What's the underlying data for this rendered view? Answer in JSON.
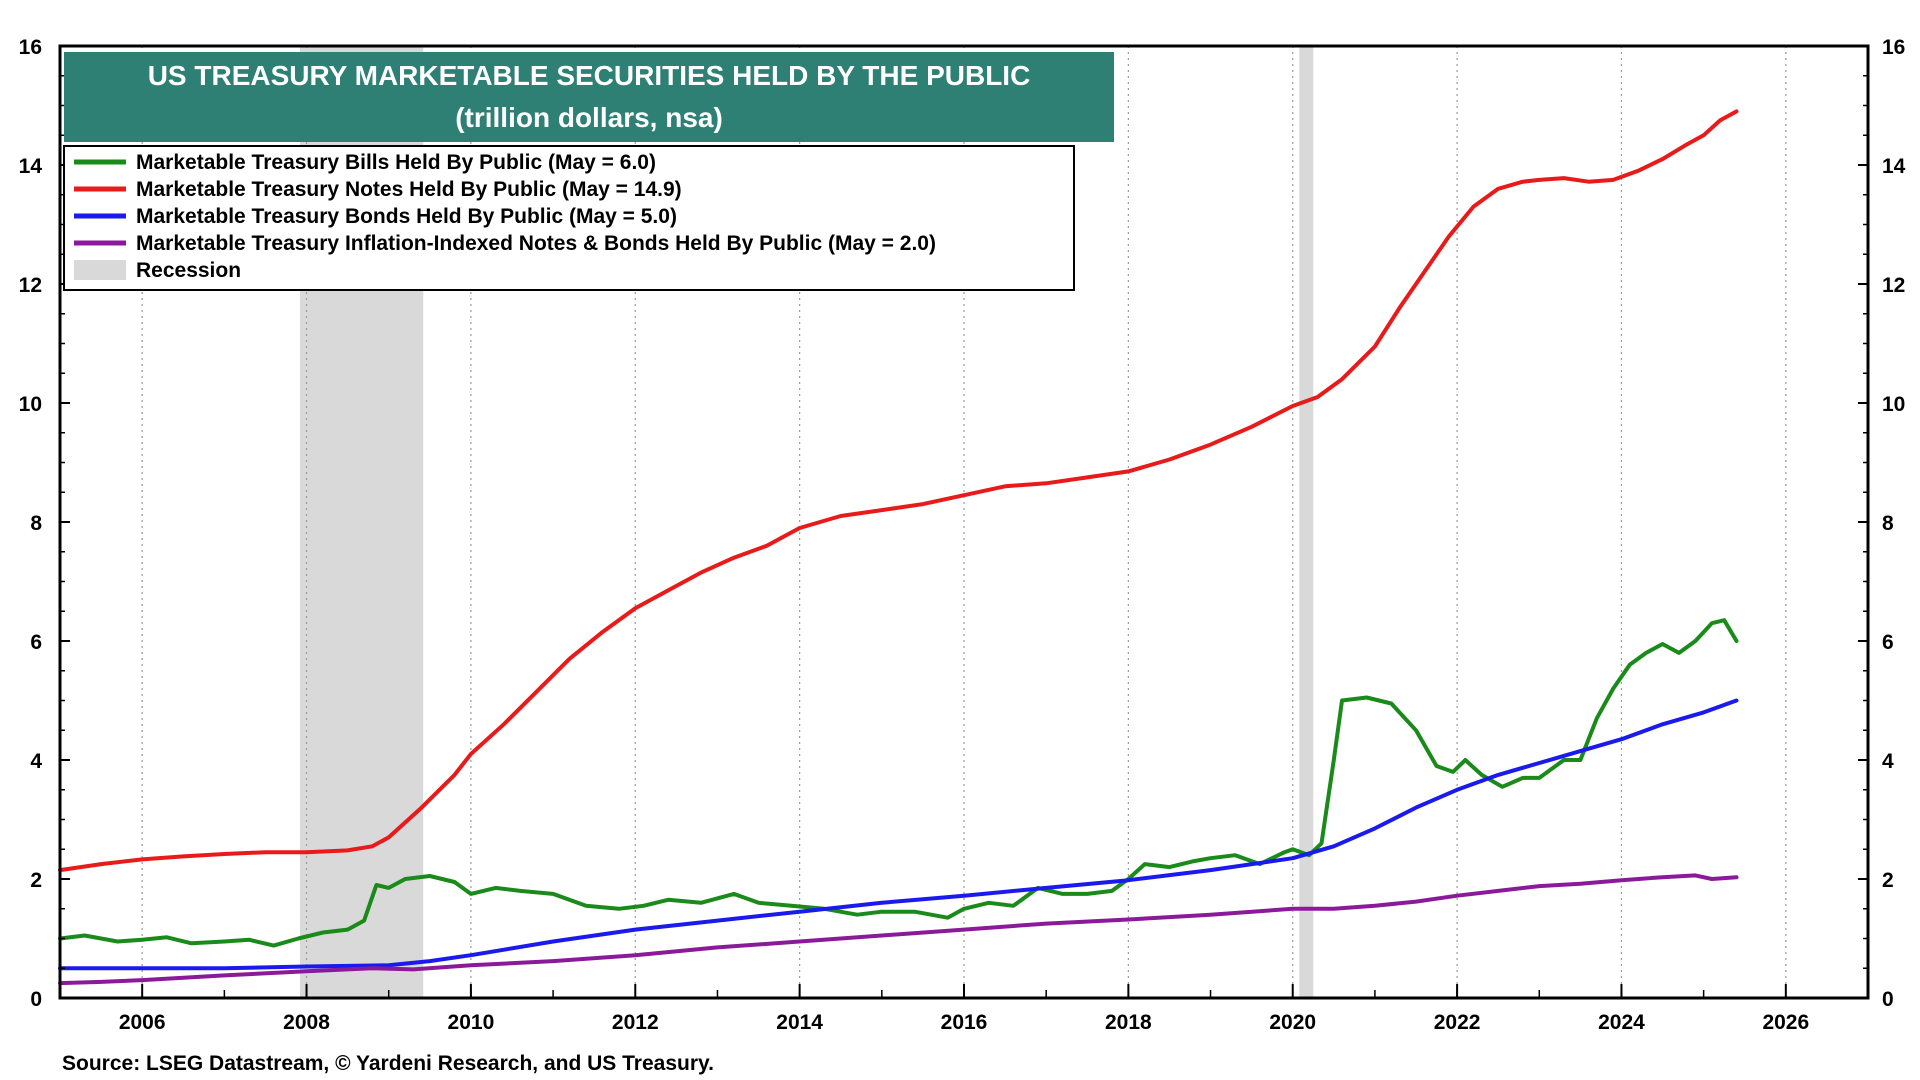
{
  "chart_data": {
    "type": "line",
    "title": "US TREASURY MARKETABLE SECURITIES HELD BY THE PUBLIC",
    "subtitle": "(trillion dollars, nsa)",
    "source": "Source: LSEG Datastream, © Yardeni Research, and US Treasury.",
    "xlim": [
      2005.0,
      2027.0
    ],
    "ylim": [
      0,
      16
    ],
    "x_ticks": [
      2006,
      2008,
      2010,
      2012,
      2014,
      2016,
      2018,
      2020,
      2022,
      2024,
      2026
    ],
    "y_ticks": [
      0,
      2,
      4,
      6,
      8,
      10,
      12,
      14,
      16
    ],
    "grid": true,
    "legend_position": "top-left",
    "recessions": [
      {
        "start": 2007.92,
        "end": 2009.42
      },
      {
        "start": 2020.08,
        "end": 2020.25
      }
    ],
    "recession_label": "Recession",
    "recession_color": "#d9d9d9",
    "title_bg_color": "#2e7f74",
    "series": [
      {
        "name": "Marketable Treasury Bills Held By Public (May = 6.0)",
        "color": "#1a8a1a",
        "points": [
          [
            2005.0,
            1.0
          ],
          [
            2005.3,
            1.05
          ],
          [
            2005.7,
            0.95
          ],
          [
            2006.0,
            0.98
          ],
          [
            2006.3,
            1.02
          ],
          [
            2006.6,
            0.92
          ],
          [
            2007.0,
            0.95
          ],
          [
            2007.3,
            0.98
          ],
          [
            2007.6,
            0.88
          ],
          [
            2007.9,
            1.0
          ],
          [
            2008.2,
            1.1
          ],
          [
            2008.5,
            1.15
          ],
          [
            2008.7,
            1.3
          ],
          [
            2008.85,
            1.9
          ],
          [
            2009.0,
            1.85
          ],
          [
            2009.2,
            2.0
          ],
          [
            2009.5,
            2.05
          ],
          [
            2009.8,
            1.95
          ],
          [
            2010.0,
            1.75
          ],
          [
            2010.3,
            1.85
          ],
          [
            2010.6,
            1.8
          ],
          [
            2011.0,
            1.75
          ],
          [
            2011.4,
            1.55
          ],
          [
            2011.8,
            1.5
          ],
          [
            2012.1,
            1.55
          ],
          [
            2012.4,
            1.65
          ],
          [
            2012.8,
            1.6
          ],
          [
            2013.2,
            1.75
          ],
          [
            2013.5,
            1.6
          ],
          [
            2013.9,
            1.55
          ],
          [
            2014.3,
            1.5
          ],
          [
            2014.7,
            1.4
          ],
          [
            2015.0,
            1.45
          ],
          [
            2015.4,
            1.45
          ],
          [
            2015.8,
            1.35
          ],
          [
            2016.0,
            1.5
          ],
          [
            2016.3,
            1.6
          ],
          [
            2016.6,
            1.55
          ],
          [
            2016.9,
            1.85
          ],
          [
            2017.2,
            1.75
          ],
          [
            2017.5,
            1.75
          ],
          [
            2017.8,
            1.8
          ],
          [
            2018.0,
            2.0
          ],
          [
            2018.2,
            2.25
          ],
          [
            2018.5,
            2.2
          ],
          [
            2018.8,
            2.3
          ],
          [
            2019.0,
            2.35
          ],
          [
            2019.3,
            2.4
          ],
          [
            2019.6,
            2.25
          ],
          [
            2019.9,
            2.45
          ],
          [
            2020.0,
            2.5
          ],
          [
            2020.2,
            2.4
          ],
          [
            2020.35,
            2.6
          ],
          [
            2020.5,
            4.0
          ],
          [
            2020.6,
            5.0
          ],
          [
            2020.9,
            5.05
          ],
          [
            2021.2,
            4.95
          ],
          [
            2021.5,
            4.5
          ],
          [
            2021.75,
            3.9
          ],
          [
            2021.95,
            3.8
          ],
          [
            2022.1,
            4.0
          ],
          [
            2022.3,
            3.75
          ],
          [
            2022.55,
            3.55
          ],
          [
            2022.8,
            3.7
          ],
          [
            2023.0,
            3.7
          ],
          [
            2023.3,
            4.0
          ],
          [
            2023.5,
            4.0
          ],
          [
            2023.7,
            4.7
          ],
          [
            2023.9,
            5.2
          ],
          [
            2024.1,
            5.6
          ],
          [
            2024.3,
            5.8
          ],
          [
            2024.5,
            5.95
          ],
          [
            2024.7,
            5.8
          ],
          [
            2024.9,
            6.0
          ],
          [
            2025.1,
            6.3
          ],
          [
            2025.25,
            6.35
          ],
          [
            2025.4,
            6.0
          ]
        ]
      },
      {
        "name": "Marketable Treasury Notes Held By Public (May = 14.9)",
        "color": "#e81a1a",
        "points": [
          [
            2005.0,
            2.15
          ],
          [
            2005.5,
            2.25
          ],
          [
            2006.0,
            2.33
          ],
          [
            2006.5,
            2.38
          ],
          [
            2007.0,
            2.42
          ],
          [
            2007.5,
            2.45
          ],
          [
            2008.0,
            2.45
          ],
          [
            2008.5,
            2.48
          ],
          [
            2008.8,
            2.55
          ],
          [
            2009.0,
            2.7
          ],
          [
            2009.4,
            3.2
          ],
          [
            2009.8,
            3.75
          ],
          [
            2010.0,
            4.1
          ],
          [
            2010.4,
            4.6
          ],
          [
            2010.8,
            5.15
          ],
          [
            2011.2,
            5.7
          ],
          [
            2011.6,
            6.15
          ],
          [
            2012.0,
            6.55
          ],
          [
            2012.4,
            6.85
          ],
          [
            2012.8,
            7.15
          ],
          [
            2013.2,
            7.4
          ],
          [
            2013.6,
            7.6
          ],
          [
            2014.0,
            7.9
          ],
          [
            2014.5,
            8.1
          ],
          [
            2015.0,
            8.2
          ],
          [
            2015.5,
            8.3
          ],
          [
            2016.0,
            8.45
          ],
          [
            2016.5,
            8.6
          ],
          [
            2017.0,
            8.65
          ],
          [
            2017.5,
            8.75
          ],
          [
            2018.0,
            8.85
          ],
          [
            2018.5,
            9.05
          ],
          [
            2019.0,
            9.3
          ],
          [
            2019.5,
            9.6
          ],
          [
            2020.0,
            9.95
          ],
          [
            2020.3,
            10.1
          ],
          [
            2020.6,
            10.4
          ],
          [
            2021.0,
            10.95
          ],
          [
            2021.3,
            11.6
          ],
          [
            2021.6,
            12.2
          ],
          [
            2021.9,
            12.8
          ],
          [
            2022.2,
            13.3
          ],
          [
            2022.5,
            13.6
          ],
          [
            2022.8,
            13.72
          ],
          [
            2023.0,
            13.75
          ],
          [
            2023.3,
            13.78
          ],
          [
            2023.6,
            13.72
          ],
          [
            2023.9,
            13.75
          ],
          [
            2024.2,
            13.9
          ],
          [
            2024.5,
            14.1
          ],
          [
            2024.8,
            14.35
          ],
          [
            2025.0,
            14.5
          ],
          [
            2025.2,
            14.75
          ],
          [
            2025.4,
            14.9
          ]
        ]
      },
      {
        "name": "Marketable Treasury Bonds Held By Public (May = 5.0)",
        "color": "#1a1aee",
        "points": [
          [
            2005.0,
            0.5
          ],
          [
            2006.0,
            0.5
          ],
          [
            2007.0,
            0.5
          ],
          [
            2008.0,
            0.53
          ],
          [
            2009.0,
            0.55
          ],
          [
            2009.5,
            0.62
          ],
          [
            2010.0,
            0.72
          ],
          [
            2011.0,
            0.95
          ],
          [
            2012.0,
            1.15
          ],
          [
            2013.0,
            1.3
          ],
          [
            2014.0,
            1.45
          ],
          [
            2015.0,
            1.6
          ],
          [
            2016.0,
            1.72
          ],
          [
            2017.0,
            1.85
          ],
          [
            2018.0,
            1.98
          ],
          [
            2019.0,
            2.15
          ],
          [
            2020.0,
            2.35
          ],
          [
            2020.5,
            2.55
          ],
          [
            2021.0,
            2.85
          ],
          [
            2021.5,
            3.2
          ],
          [
            2022.0,
            3.5
          ],
          [
            2022.5,
            3.75
          ],
          [
            2023.0,
            3.95
          ],
          [
            2023.5,
            4.15
          ],
          [
            2024.0,
            4.35
          ],
          [
            2024.5,
            4.6
          ],
          [
            2025.0,
            4.8
          ],
          [
            2025.4,
            5.0
          ]
        ]
      },
      {
        "name": "Marketable Treasury Inflation-Indexed Notes & Bonds Held By Public (May = 2.0)",
        "color": "#8a1a9a",
        "points": [
          [
            2005.0,
            0.25
          ],
          [
            2005.5,
            0.27
          ],
          [
            2006.0,
            0.3
          ],
          [
            2007.0,
            0.38
          ],
          [
            2008.0,
            0.45
          ],
          [
            2008.8,
            0.5
          ],
          [
            2009.3,
            0.48
          ],
          [
            2010.0,
            0.55
          ],
          [
            2011.0,
            0.62
          ],
          [
            2012.0,
            0.72
          ],
          [
            2013.0,
            0.85
          ],
          [
            2014.0,
            0.95
          ],
          [
            2015.0,
            1.05
          ],
          [
            2016.0,
            1.15
          ],
          [
            2017.0,
            1.25
          ],
          [
            2018.0,
            1.32
          ],
          [
            2019.0,
            1.4
          ],
          [
            2020.0,
            1.5
          ],
          [
            2020.5,
            1.5
          ],
          [
            2021.0,
            1.55
          ],
          [
            2021.5,
            1.62
          ],
          [
            2022.0,
            1.72
          ],
          [
            2022.5,
            1.8
          ],
          [
            2023.0,
            1.88
          ],
          [
            2023.5,
            1.92
          ],
          [
            2024.0,
            1.98
          ],
          [
            2024.5,
            2.03
          ],
          [
            2024.9,
            2.06
          ],
          [
            2025.1,
            2.0
          ],
          [
            2025.4,
            2.03
          ]
        ]
      }
    ],
    "legend": [
      "Marketable Treasury Bills Held By Public (May = 6.0)",
      "Marketable Treasury Notes Held By Public (May = 14.9)",
      "Marketable Treasury Bonds Held By Public (May = 5.0)",
      "Marketable Treasury Inflation-Indexed Notes & Bonds Held By Public (May = 2.0)",
      "Recession"
    ]
  }
}
